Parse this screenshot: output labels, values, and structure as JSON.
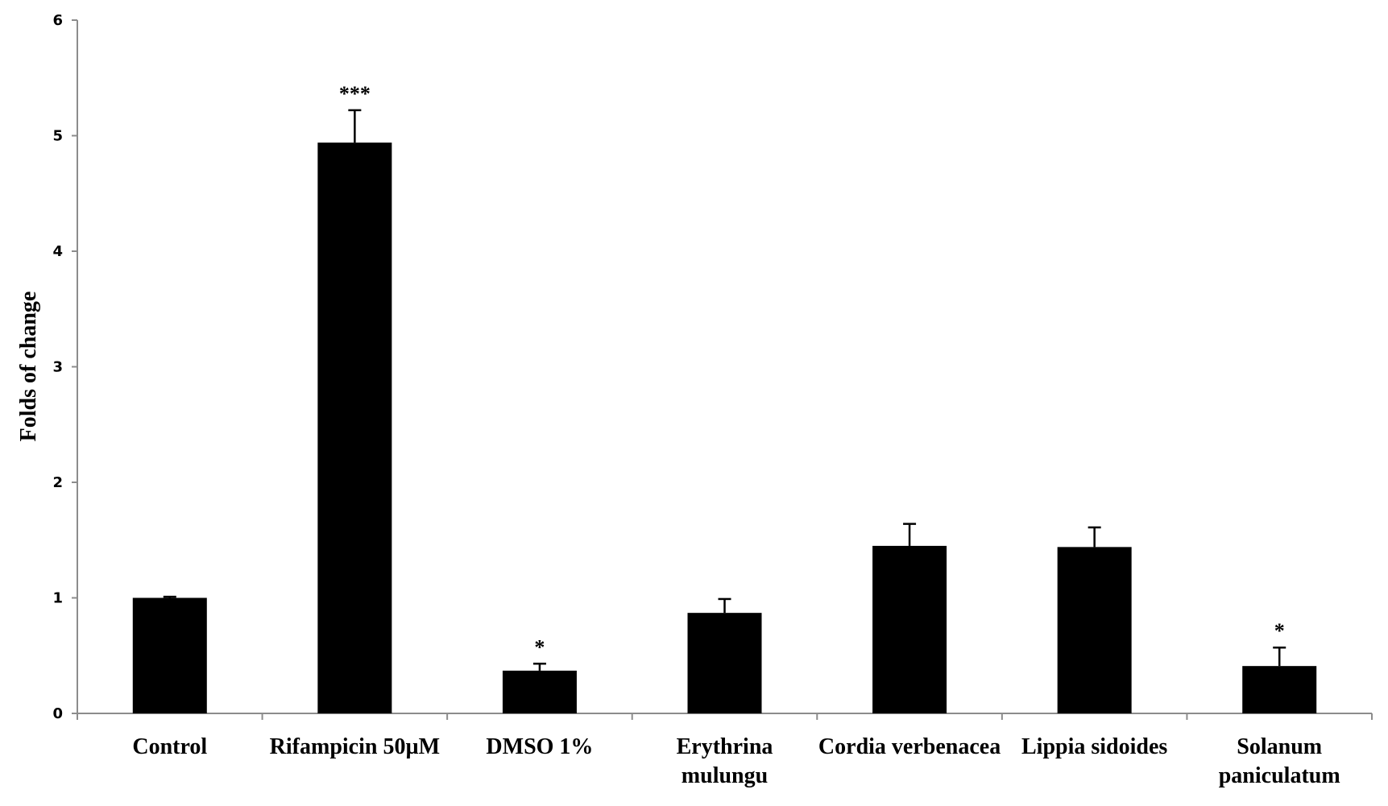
{
  "chart_data": {
    "type": "bar",
    "ylabel": "Folds of change",
    "ylim": [
      0,
      6
    ],
    "yticks": [
      "0",
      "1",
      "2",
      "3",
      "4",
      "5",
      "6"
    ],
    "grid": false,
    "categories": [
      [
        "Control"
      ],
      [
        "Rifampicin 50µM"
      ],
      [
        "DMSO 1%"
      ],
      [
        "Erythrina",
        "mulungu"
      ],
      [
        "Cordia verbenacea"
      ],
      [
        "Lippia sidoides"
      ],
      [
        "Solanum",
        "paniculatum"
      ]
    ],
    "values": [
      1.0,
      4.94,
      0.37,
      0.87,
      1.45,
      1.44,
      0.41
    ],
    "errors": [
      0.01,
      0.28,
      0.06,
      0.12,
      0.19,
      0.17,
      0.16
    ],
    "significance": [
      "",
      "***",
      "*",
      "",
      "",
      "",
      "*"
    ],
    "bar_color": "#000000",
    "axis_color": "#8c8c8c"
  }
}
